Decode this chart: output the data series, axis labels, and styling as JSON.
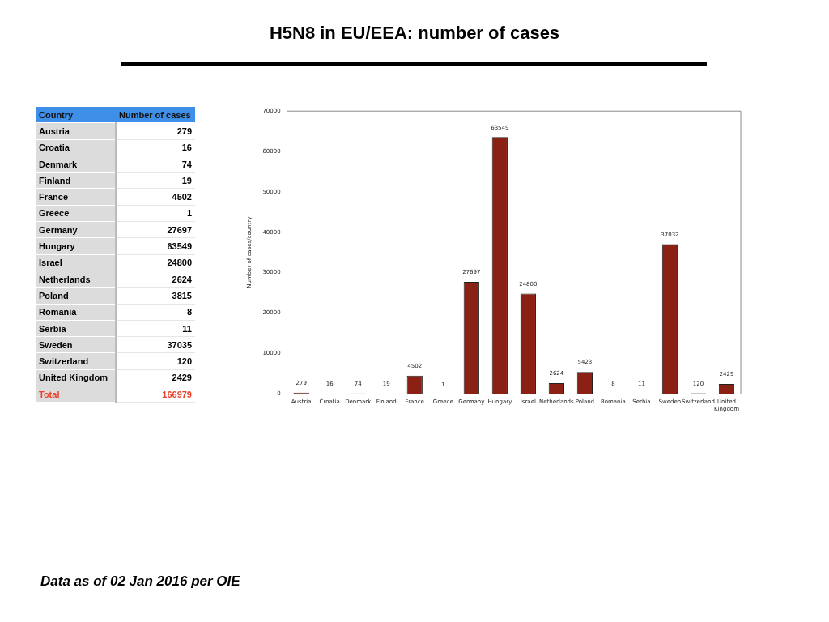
{
  "chart_data": [
    {
      "type": "other",
      "xlabel": "Country",
      "ylabel": "Number of cases",
      "categories": [
        "Austria",
        "Croatia",
        "Denmark",
        "Finland",
        "France",
        "Greece",
        "Germany",
        "Hungary",
        "Israel",
        "Netherlands",
        "Poland",
        "Romania",
        "Serbia",
        "Sweden",
        "Switzerland",
        "United Kingdom",
        "Total"
      ],
      "values": [
        279,
        16,
        74,
        19,
        4502,
        1,
        27697,
        63549,
        24800,
        2624,
        3815,
        8,
        11,
        37035,
        120,
        2429,
        166979
      ],
      "data_labels": true
    },
    {
      "type": "bar",
      "title": "H5N8 in EU/EEA: number of cases",
      "ylabel": "Number of cases/country",
      "categories": [
        "Austria",
        "Croatia",
        "Denmark",
        "Finland",
        "France",
        "Greece",
        "Germany",
        "Hungary",
        "Israel",
        "Netherlands",
        "Poland",
        "Romania",
        "Serbia",
        "Sweden",
        "Switzerland",
        "United Kingdom"
      ],
      "values": [
        279,
        16,
        74,
        19,
        4502,
        1,
        27697,
        63549,
        24800,
        2624,
        5423,
        8,
        11,
        37032,
        120,
        2429
      ],
      "color": "#8b2015",
      "ylim": [
        0,
        70000
      ],
      "yticks": [
        0,
        10000,
        20000,
        30000,
        40000,
        50000,
        60000,
        70000
      ],
      "data_labels": true,
      "grid": false,
      "legend": false,
      "annotations": [
        "Data as of 02 Jan 2016 per OIE"
      ]
    }
  ]
}
